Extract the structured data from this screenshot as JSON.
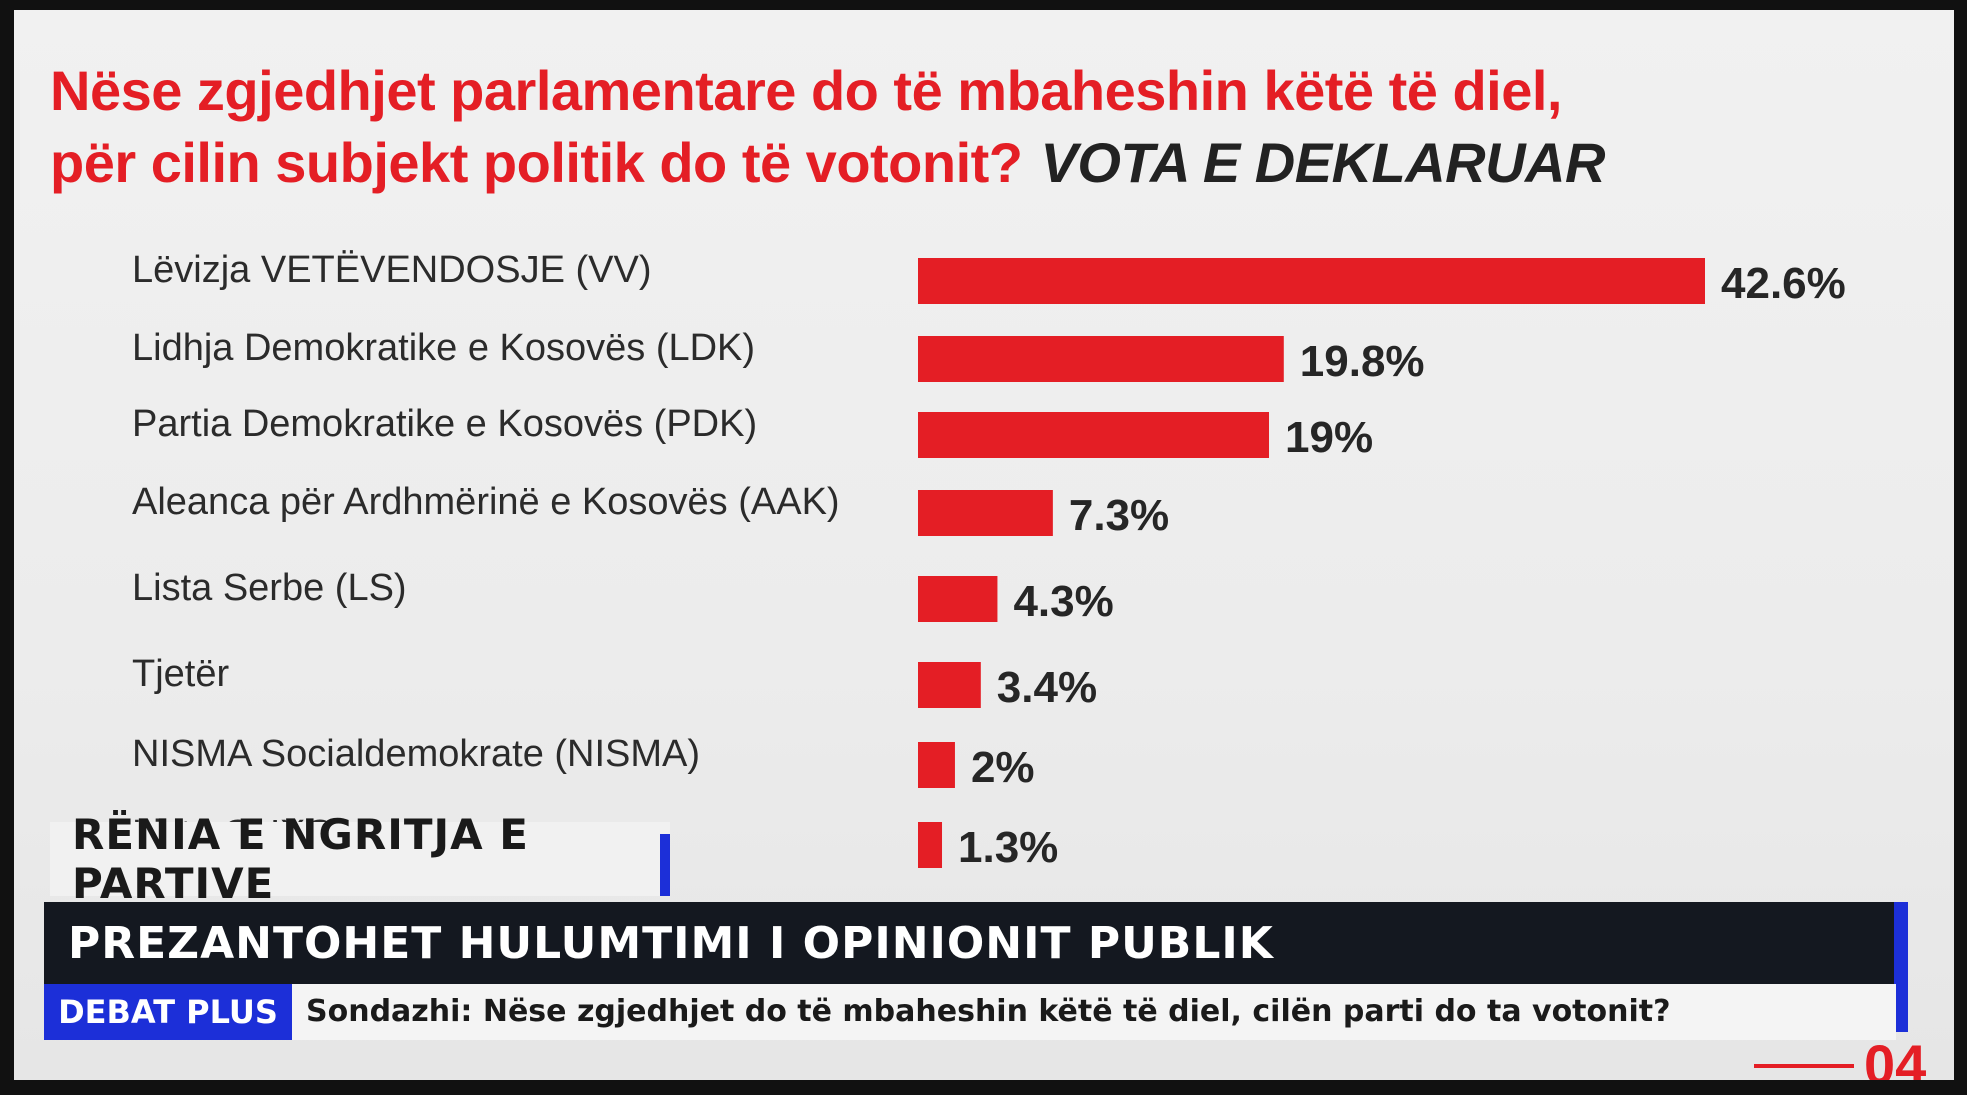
{
  "question": {
    "line1": "Nëse zgjedhjet parlamentare do të mbaheshin këtë të diel,",
    "line2": "për cilin subjekt politik do të votonit?",
    "emphasis": "VOTA E DEKLARUAR"
  },
  "chart_data": {
    "type": "bar",
    "orientation": "horizontal",
    "categories": [
      "Lëvizja VETËVENDOSJE (VV)",
      "Lidhja Demokratike e Kosovës (LDK)",
      "Partia Demokratike e Kosovës (PDK)",
      "Aleanca për Ardhmërinë e Kosovës (AAK)",
      "Lista Serbe (LS)",
      "Tjetër",
      "NISMA Socialdemokrate (NISMA)",
      "Lista GUXO"
    ],
    "values": [
      42.6,
      19.8,
      19,
      7.3,
      4.3,
      3.4,
      2,
      1.3
    ],
    "value_labels": [
      "42.6%",
      "19.8%",
      "19%",
      "7.3%",
      "4.3%",
      "3.4%",
      "2%",
      "1.3%"
    ],
    "bar_color": "#e41e25",
    "grid": false
  },
  "lower_third": {
    "section": "RËNIA E NGRITJA E PARTIVE",
    "headline": "PREZANTOHET HULUMTIMI I OPINIONIT PUBLIK",
    "show": "DEBAT PLUS",
    "ticker": "Sondazhi: Nëse zgjedhjet do të mbaheshin këtë të diel, cilën parti do ta votonit?",
    "page_number": "04"
  },
  "colors": {
    "accent_red": "#e41e25",
    "accent_blue": "#1c2fd8",
    "dark_bar": "#141820"
  }
}
